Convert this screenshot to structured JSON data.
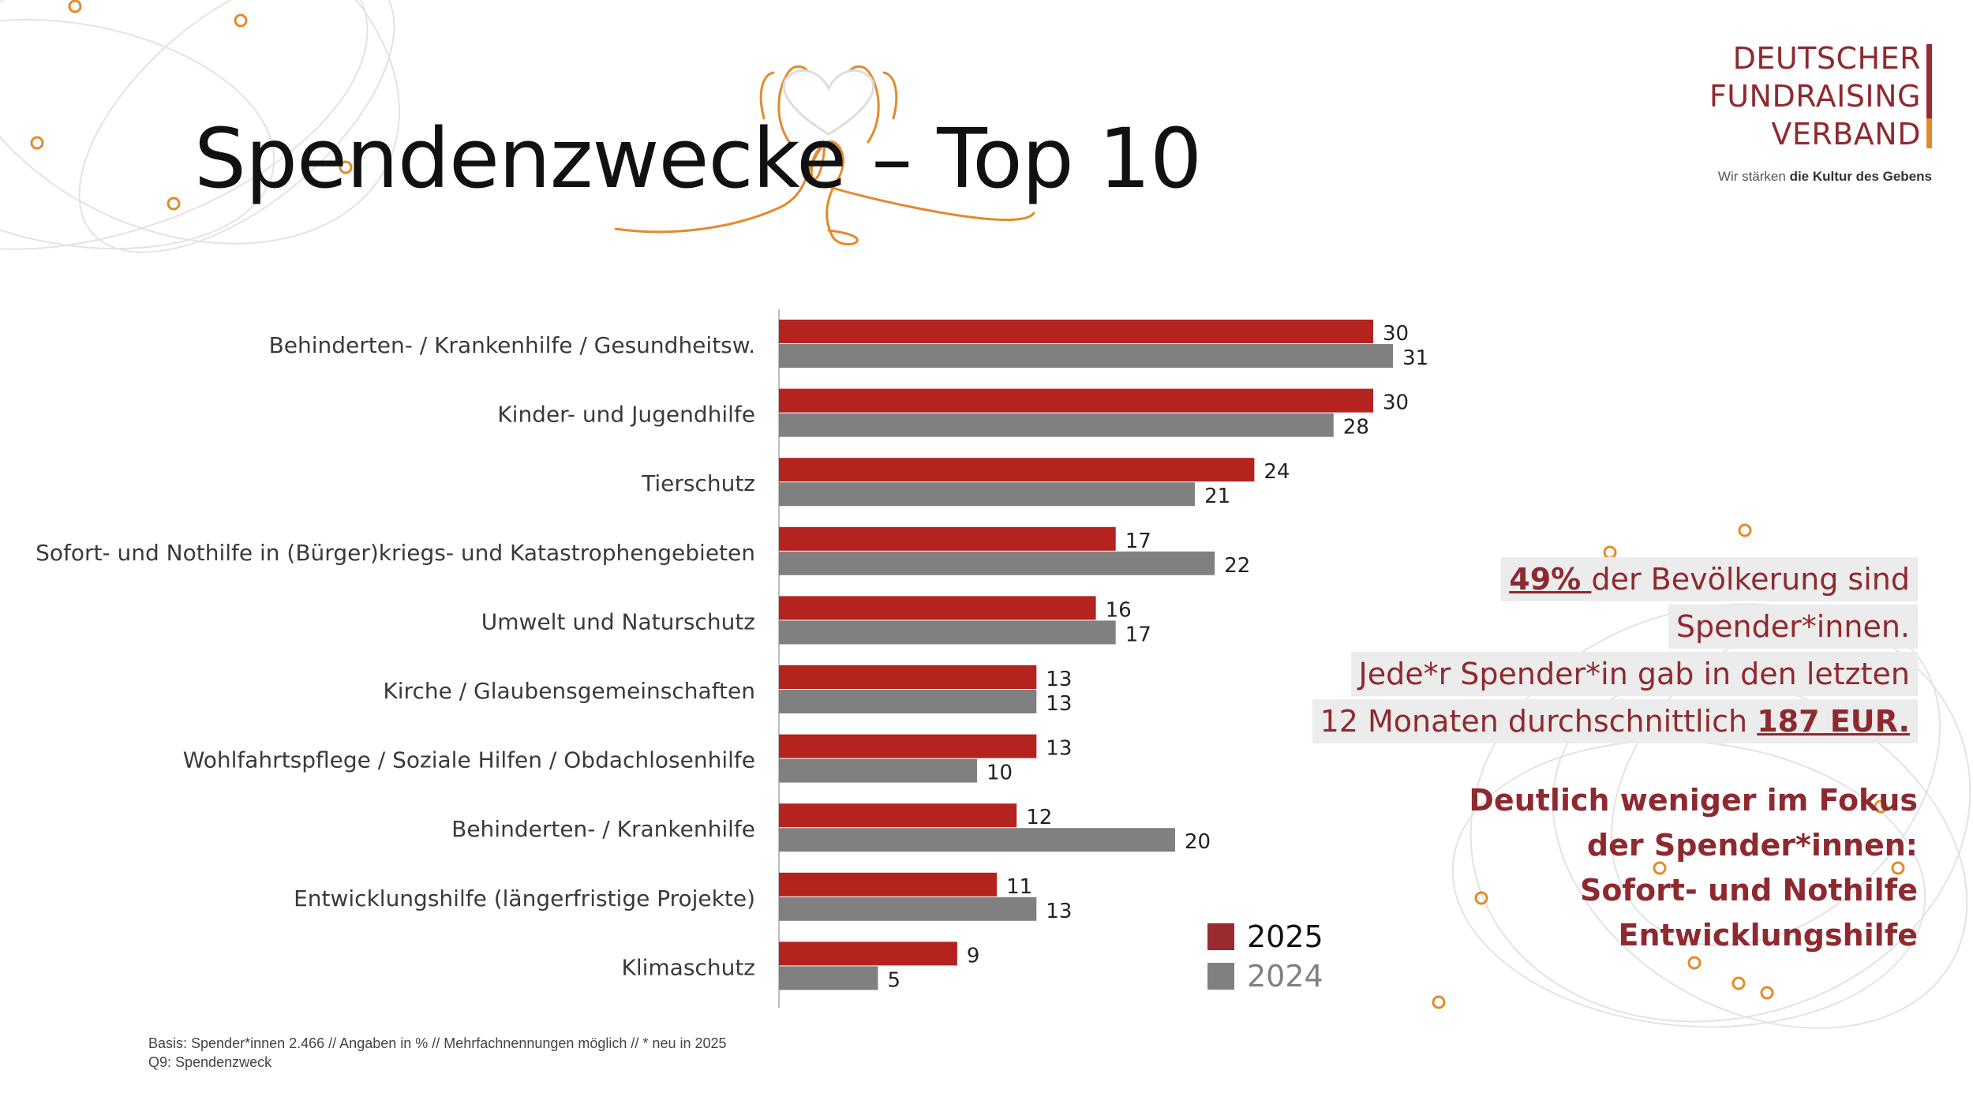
{
  "title": "Spendenzwecke – Top 10",
  "logo": {
    "lines": [
      "DEUTSCHER",
      "FUNDRAISING",
      "VERBAND"
    ],
    "tagline_prefix": "Wir stärken ",
    "tagline_bold": "die Kultur des Gebens"
  },
  "colors": {
    "series_2025": "#b5231e",
    "series_2024": "#808080",
    "accent": "#8e2a2f",
    "orange": "#e38a2c"
  },
  "chart_data": {
    "type": "bar",
    "orientation": "horizontal",
    "categories": [
      "Behinderten- / Krankenhilfe / Gesundheitsw.",
      "Kinder- und Jugendhilfe",
      "Tierschutz",
      "Sofort- und Nothilfe in (Bürger)kriegs- und Katastrophengebieten",
      "Umwelt und Naturschutz",
      "Kirche / Glaubensgemeinschaften",
      "Wohlfahrtspflege / Soziale Hilfen / Obdachlosenhilfe",
      "Behinderten- / Krankenhilfe",
      "Entwicklungshilfe (längerfristige Projekte)",
      "Klimaschutz"
    ],
    "series": [
      {
        "name": "2025",
        "values": [
          30,
          30,
          24,
          17,
          16,
          13,
          13,
          12,
          11,
          9
        ]
      },
      {
        "name": "2024",
        "values": [
          31,
          28,
          21,
          22,
          17,
          13,
          10,
          20,
          13,
          5
        ]
      }
    ],
    "xlim": [
      0,
      32
    ],
    "grid": false,
    "legend": "bottom-right"
  },
  "note": {
    "line1_pct": "49% ",
    "line1_rest": "der Bevölkerung sind",
    "line2": "Spender*innen.",
    "line3": "Jede*r Spender*in gab in den letzten",
    "line4_prefix": "12 Monaten durchschnittlich ",
    "line4_amount": "187 EUR.",
    "focus": [
      "Deutlich weniger im Fokus",
      "der Spender*innen:",
      "Sofort- und Nothilfe",
      "Entwicklungshilfe"
    ]
  },
  "footnote": {
    "basis": "Basis: Spender*innen 2.466 // Angaben in % // Mehrfachnennungen möglich // * neu in 2025",
    "question": "Q9: Spendenzweck"
  }
}
